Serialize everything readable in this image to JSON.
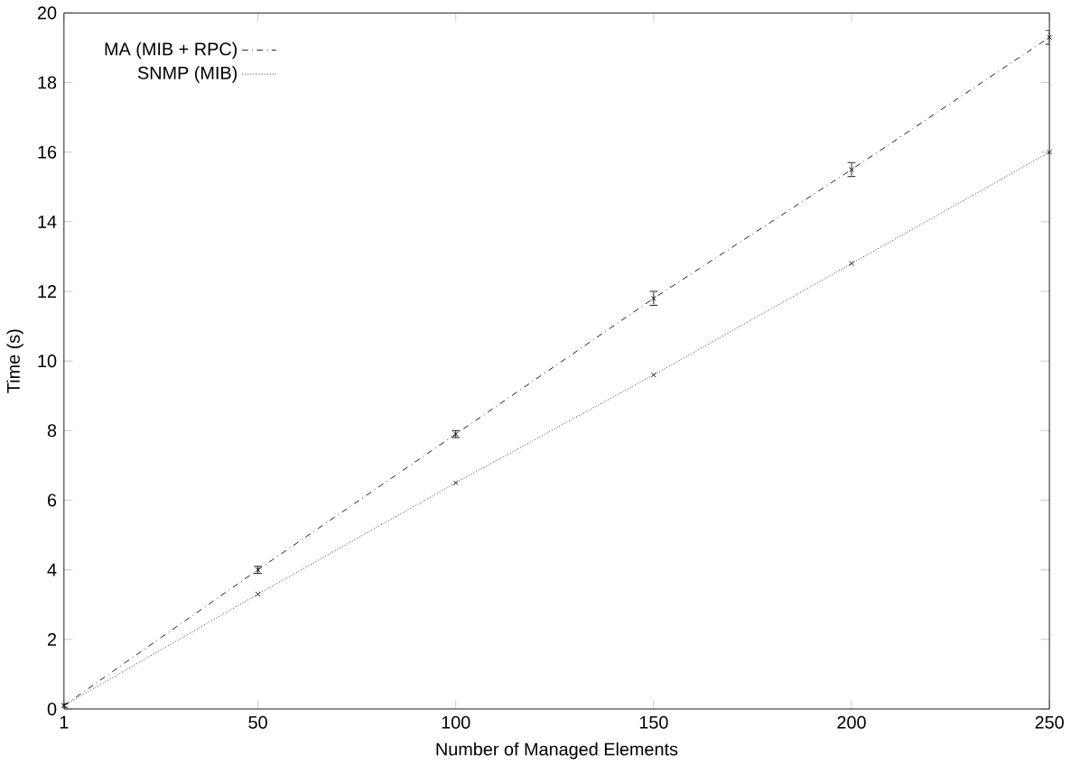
{
  "chart_data": {
    "type": "line",
    "xlabel": "Number of Managed Elements",
    "ylabel": "Time (s)",
    "x": [
      1,
      50,
      100,
      150,
      200,
      250
    ],
    "series": [
      {
        "name": "MA (MIB + RPC)",
        "color": "#000000",
        "line_style": "dashed",
        "values": [
          0.1,
          4.0,
          7.9,
          11.8,
          15.5,
          19.3
        ],
        "errors": [
          0.05,
          0.1,
          0.1,
          0.2,
          0.2,
          0.2
        ]
      },
      {
        "name": "SNMP (MIB)",
        "color": "#000000",
        "line_style": "dotted",
        "values": [
          0.1,
          3.3,
          6.5,
          9.6,
          12.8,
          16.0
        ]
      }
    ],
    "xlim": [
      1,
      250
    ],
    "ylim": [
      0,
      20
    ],
    "xticks": [
      1,
      50,
      100,
      150,
      200,
      250
    ],
    "yticks": [
      0,
      2,
      4,
      6,
      8,
      10,
      12,
      14,
      16,
      18,
      20
    ],
    "marker": "cross",
    "legend": "top left",
    "grid": false
  }
}
